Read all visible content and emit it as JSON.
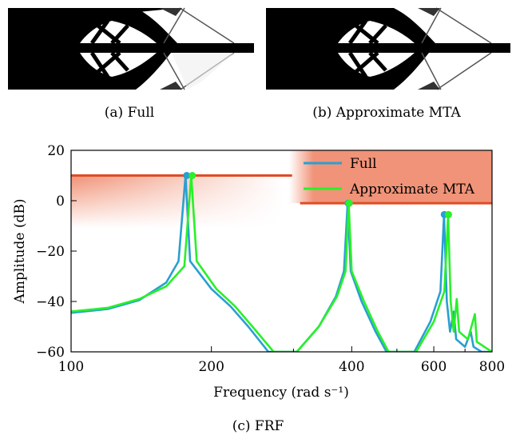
{
  "panels": [
    {
      "caption": "(a) Full"
    },
    {
      "caption": "(b) Approximate MTA"
    }
  ],
  "chart_caption": "(c) FRF",
  "colors": {
    "full": "#2a9fd2",
    "approx": "#29f029",
    "band": "#ef8769",
    "limit": "#e04c24"
  },
  "chart_data": {
    "type": "line",
    "title": "",
    "xlabel": "Frequency (rad s⁻¹)",
    "ylabel": "Amplitude (dB)",
    "xscale": "log",
    "xlim": [
      100,
      800
    ],
    "ylim": [
      -60,
      20
    ],
    "xticks": [
      100,
      200,
      400,
      600,
      800
    ],
    "xtick_labels": [
      "100",
      "200",
      "400",
      "600",
      "800"
    ],
    "yticks": [
      -60,
      -40,
      -20,
      0,
      20
    ],
    "ytick_labels": [
      "−60",
      "−40",
      "−20",
      "0",
      "20"
    ],
    "legend": {
      "position": "top-right",
      "entries": [
        "Full",
        "Approximate MTA"
      ]
    },
    "grid": false,
    "constraint_levels": [
      {
        "x": [
          100,
          298
        ],
        "y": 10
      },
      {
        "x": [
          310,
          800
        ],
        "y": -1
      }
    ],
    "series": [
      {
        "name": "Full",
        "peaks": [
          {
            "x": 177,
            "y": 10
          },
          {
            "x": 393,
            "y": -1
          },
          {
            "x": 632,
            "y": -5.5
          }
        ],
        "points": [
          [
            100,
            -44.5
          ],
          [
            120,
            -43
          ],
          [
            140,
            -39.5
          ],
          [
            160,
            -32.5
          ],
          [
            170,
            -24
          ],
          [
            176,
            10
          ],
          [
            180,
            -24
          ],
          [
            200,
            -35
          ],
          [
            220,
            -42
          ],
          [
            240,
            -50
          ],
          [
            265,
            -60
          ],
          [
            305,
            -60
          ],
          [
            340,
            -50
          ],
          [
            370,
            -38
          ],
          [
            385,
            -28
          ],
          [
            392,
            -1
          ],
          [
            398,
            -28
          ],
          [
            420,
            -40
          ],
          [
            450,
            -52
          ],
          [
            475,
            -60
          ],
          [
            545,
            -60
          ],
          [
            590,
            -48
          ],
          [
            620,
            -36
          ],
          [
            631,
            -5.5
          ],
          [
            640,
            -40
          ],
          [
            650,
            -52
          ],
          [
            662,
            -44
          ],
          [
            670,
            -55
          ],
          [
            700,
            -58
          ],
          [
            720,
            -52
          ],
          [
            730,
            -58
          ],
          [
            760,
            -60
          ],
          [
            800,
            -60
          ]
        ]
      },
      {
        "name": "Approximate MTA",
        "peaks": [
          {
            "x": 182,
            "y": 10
          },
          {
            "x": 395,
            "y": -1
          },
          {
            "x": 645,
            "y": -5.5
          }
        ],
        "points": [
          [
            100,
            -44
          ],
          [
            120,
            -42.5
          ],
          [
            140,
            -39
          ],
          [
            160,
            -34
          ],
          [
            175,
            -26
          ],
          [
            181,
            10
          ],
          [
            186,
            -24
          ],
          [
            205,
            -35
          ],
          [
            225,
            -42
          ],
          [
            245,
            -50
          ],
          [
            272,
            -60
          ],
          [
            305,
            -60
          ],
          [
            340,
            -50
          ],
          [
            372,
            -38
          ],
          [
            388,
            -28
          ],
          [
            394,
            -1
          ],
          [
            400,
            -28
          ],
          [
            425,
            -40
          ],
          [
            455,
            -52
          ],
          [
            480,
            -60
          ],
          [
            550,
            -60
          ],
          [
            600,
            -48
          ],
          [
            632,
            -36
          ],
          [
            644,
            -5.5
          ],
          [
            652,
            -40
          ],
          [
            662,
            -52
          ],
          [
            672,
            -39
          ],
          [
            680,
            -52
          ],
          [
            710,
            -55
          ],
          [
            735,
            -45
          ],
          [
            742,
            -56
          ],
          [
            770,
            -58
          ],
          [
            800,
            -60
          ]
        ]
      }
    ]
  }
}
